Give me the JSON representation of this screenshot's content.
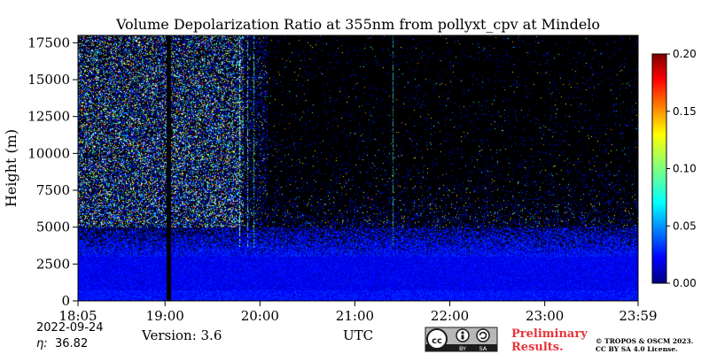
{
  "chart_data": {
    "type": "heatmap",
    "title": "Volume Depolarization Ratio at 355nm from pollyxt_cpv at Mindelo",
    "xlabel": "UTC",
    "ylabel": "Height (m)",
    "x_range": [
      "18:05",
      "23:59"
    ],
    "x_ticks": [
      "18:05",
      "19:00",
      "20:00",
      "21:00",
      "22:00",
      "23:00",
      "23:59"
    ],
    "y_range": [
      0,
      18000
    ],
    "y_ticks": [
      0,
      2500,
      5000,
      7500,
      10000,
      12500,
      15000,
      17500
    ],
    "colorbar": {
      "range": [
        0.0,
        0.2
      ],
      "ticks": [
        "0.00",
        "0.05",
        "0.10",
        "0.15",
        "0.20"
      ],
      "colormap": "jet",
      "position": "right"
    },
    "background_color": "#000000",
    "data_gaps": [
      {
        "from": "19:01",
        "to": "19:04"
      }
    ],
    "grid": false,
    "legend": "none"
  },
  "footer": {
    "date": "2022-09-24",
    "eta_label": "η:",
    "eta_value": "36.82",
    "version": "Version: 3.6",
    "preliminary_line1": "Preliminary",
    "preliminary_line2": "Results.",
    "copyright_line1": "© TROPOS & OSCM 2023.",
    "copyright_line2": "CC BY SA 4.0 License.",
    "cc_badge": {
      "cc": "cc",
      "by": "BY",
      "sa": "SA"
    }
  },
  "colors": {
    "preliminary": "#e8343a",
    "badge_bg": "#b7b7b7",
    "badge_dark": "#1c1c1c"
  }
}
